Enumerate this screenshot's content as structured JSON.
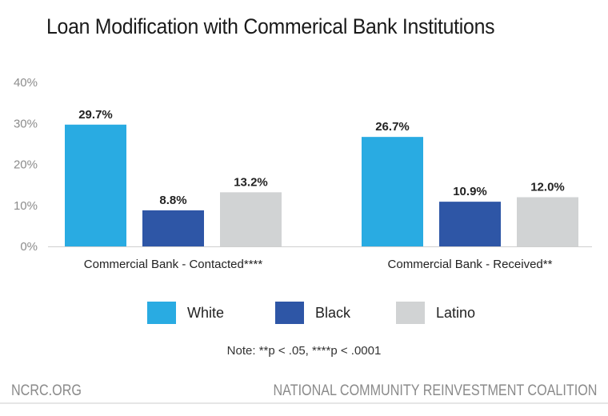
{
  "title": "Loan Modification with Commerical Bank Institutions",
  "note": "Note:  **p < .05, ****p < .0001",
  "footer": {
    "left": "NCRC.ORG",
    "right": "NATIONAL COMMUNITY REINVESTMENT COALITION"
  },
  "chart_data": {
    "type": "bar",
    "title": "Loan Modification with Commerical Bank Institutions",
    "categories": [
      "Commercial Bank - Contacted****",
      "Commercial Bank - Received**"
    ],
    "series": [
      {
        "name": "White",
        "color": "#29abe2",
        "values": [
          29.7,
          26.7
        ],
        "labels": [
          "29.7%",
          "26.7%"
        ]
      },
      {
        "name": "Black",
        "color": "#2e56a6",
        "values": [
          8.8,
          10.9
        ],
        "labels": [
          "8.8%",
          "10.9%"
        ]
      },
      {
        "name": "Latino",
        "color": "#d1d3d4",
        "values": [
          13.2,
          12.0
        ],
        "labels": [
          "13.2%",
          "12.0%"
        ]
      }
    ],
    "ylim": [
      0,
      40
    ],
    "yticks": [
      "0%",
      "10%",
      "20%",
      "30%",
      "40%"
    ],
    "xlabel": "",
    "ylabel": "",
    "grid": false,
    "legend": "bottom"
  }
}
